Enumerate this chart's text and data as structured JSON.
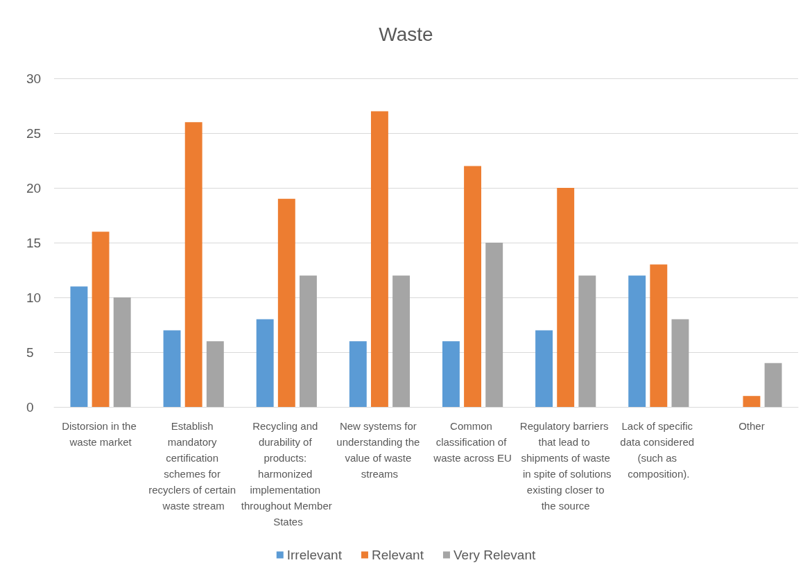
{
  "chart_data": {
    "type": "bar",
    "title": "Waste",
    "categories": [
      "Distorsion in the waste market",
      "Establish mandatory certification schemes for recyclers of certain waste stream",
      "Recycling and durability of products: harmonized implementation throughout Member States",
      "New systems for understanding the value of waste streams",
      "Common classification of waste across EU",
      "Regulatory barriers that lead to shipments of waste in spite of solutions existing closer to the source",
      "Lack of specific data considered (such as composition).",
      "Other"
    ],
    "series": [
      {
        "name": "Irrelevant",
        "color": "#5b9bd5",
        "values": [
          11,
          7,
          8,
          6,
          6,
          7,
          12,
          0
        ]
      },
      {
        "name": "Relevant",
        "color": "#ed7d31",
        "values": [
          16,
          26,
          19,
          27,
          22,
          20,
          13,
          1
        ]
      },
      {
        "name": "Very Relevant",
        "color": "#a5a5a5",
        "values": [
          10,
          6,
          12,
          12,
          15,
          12,
          8,
          4
        ]
      }
    ],
    "ylim": [
      0,
      30
    ],
    "yticks": [
      0,
      5,
      10,
      15,
      20,
      25,
      30
    ],
    "grid": "y",
    "legend": "bottom"
  }
}
